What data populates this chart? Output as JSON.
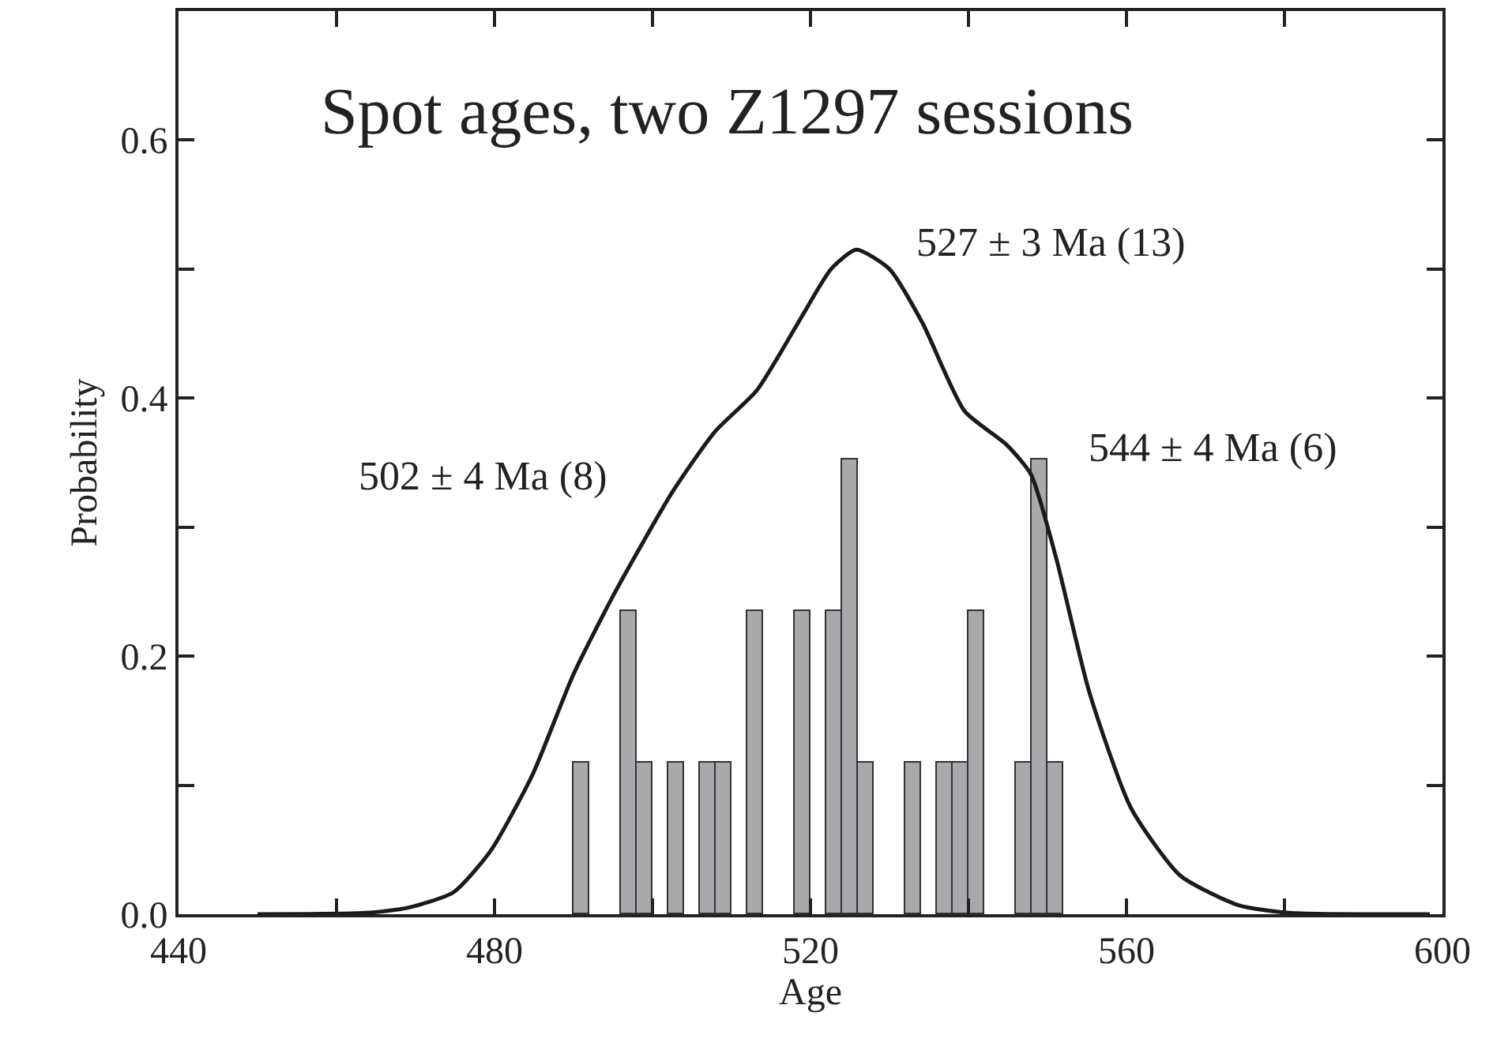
{
  "chart_data": {
    "type": "histogram",
    "title": "Spot ages, two Z1297 sessions",
    "xlabel": "Age",
    "ylabel": "Probability",
    "series": [
      {
        "color": "#a7a9ac",
        "bins": [
          490,
          492,
          494,
          496,
          498,
          500,
          502,
          504,
          506,
          508,
          510,
          512,
          514,
          516,
          518,
          520,
          522,
          524,
          526,
          528,
          530,
          532,
          534,
          536,
          538,
          540,
          542,
          544,
          546,
          548,
          550,
          552
        ],
        "values": [
          0.118,
          0,
          0,
          0.235,
          0.118,
          0,
          0.118,
          0,
          0.118,
          0.118,
          0,
          0.235,
          0,
          0,
          0.235,
          0,
          0.235,
          0.353,
          0.118,
          0,
          0,
          0.118,
          0,
          0.118,
          0.118,
          0.235,
          0,
          0,
          0.118,
          0.353,
          0.118
        ]
      },
      {
        "type": "line",
        "color": "#1a1a1a",
        "x": [
          450,
          463.7,
          469,
          474.8,
          479.5,
          484.8,
          490,
          495.3,
          502.6,
          507.9,
          513.2,
          518.4,
          522.6,
          525.8,
          530,
          534.2,
          539.5,
          544.8,
          547.9,
          551.1,
          555.3,
          560.6,
          566.8,
          574.2,
          580.6,
          598.4
        ],
        "values": [
          0,
          0.001,
          0.005,
          0.017,
          0.049,
          0.108,
          0.186,
          0.25,
          0.328,
          0.374,
          0.406,
          0.458,
          0.5,
          0.515,
          0.5,
          0.458,
          0.39,
          0.364,
          0.341,
          0.276,
          0.172,
          0.082,
          0.03,
          0.007,
          0.001,
          0
        ]
      }
    ],
    "annotations": [
      "502 ± 4 Ma (8)",
      "527 ± 3 Ma (13)",
      "544 ± 4 Ma (6)"
    ],
    "xlim": [
      440,
      600
    ],
    "xticks": [
      440,
      {
        "value": 460,
        "label": null
      },
      480,
      {
        "value": 500,
        "label": null
      },
      520,
      {
        "value": 540,
        "label": null
      },
      560,
      {
        "value": 580,
        "label": null
      },
      600
    ],
    "ylim": [
      0,
      0.7
    ],
    "yticks": [
      {
        "value": 0,
        "label": "0.0"
      },
      {
        "value": 0.1,
        "label": null
      },
      0.2,
      {
        "value": 0.3,
        "label": null
      },
      0.4,
      {
        "value": 0.5,
        "label": null
      },
      0.6
    ]
  }
}
